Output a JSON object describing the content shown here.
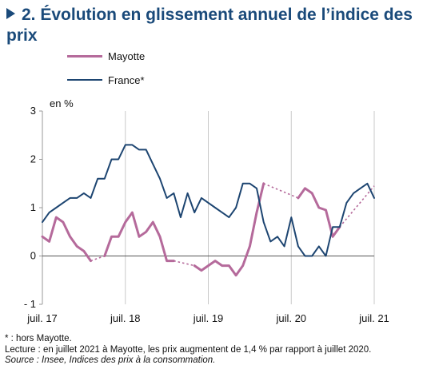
{
  "title": "2. Évolution en glissement annuel de l’indice des prix",
  "unit_label": "en %",
  "notes": {
    "asterisk": "* : hors Mayotte.",
    "reading": "Lecture : en juillet 2021 à Mayotte, les prix augmentent de 1,4 % par rapport à juillet 2020.",
    "source": "Source : Insee, Indices des prix à la consommation."
  },
  "colors": {
    "mayotte": "#b56a9b",
    "france": "#1d4571",
    "title": "#1a4a7a"
  },
  "chart_data": {
    "type": "line",
    "title": "2. Évolution en glissement annuel de l’indice des prix",
    "ylabel": "en %",
    "xlabel": "",
    "ylim": [
      -1,
      3
    ],
    "yticks": [
      "- 1",
      "0",
      "1",
      "2",
      "3"
    ],
    "ytick_values": [
      -1,
      0,
      1,
      2,
      3
    ],
    "xlim": [
      "2017-07",
      "2021-07"
    ],
    "xticks": [
      "juil. 17",
      "juil. 18",
      "juil. 19",
      "juil. 20",
      "juil. 21"
    ],
    "xtick_months": [
      "2017-07",
      "2018-07",
      "2019-07",
      "2020-07",
      "2021-07"
    ],
    "grid": {
      "vertical": true,
      "horizontal": false
    },
    "legend_position": "top-left",
    "series": [
      {
        "name": "Mayotte",
        "color": "#b56a9b",
        "style": "solid-with-dotted-gaps",
        "points": [
          [
            "2017-07",
            0.4
          ],
          [
            "2017-08",
            0.3
          ],
          [
            "2017-09",
            0.8
          ],
          [
            "2017-10",
            0.7
          ],
          [
            "2017-11",
            0.4
          ],
          [
            "2017-12",
            0.2
          ],
          [
            "2018-01",
            0.1
          ],
          [
            "2018-02",
            -0.1
          ],
          [
            "2018-03",
            null
          ],
          [
            "2018-04",
            0.0
          ],
          [
            "2018-05",
            0.4
          ],
          [
            "2018-06",
            0.4
          ],
          [
            "2018-07",
            0.7
          ],
          [
            "2018-08",
            0.9
          ],
          [
            "2018-09",
            0.4
          ],
          [
            "2018-10",
            0.5
          ],
          [
            "2018-11",
            0.7
          ],
          [
            "2018-12",
            0.4
          ],
          [
            "2019-01",
            -0.1
          ],
          [
            "2019-02",
            -0.1
          ],
          [
            "2019-03",
            null
          ],
          [
            "2019-04",
            null
          ],
          [
            "2019-05",
            -0.2
          ],
          [
            "2019-06",
            -0.3
          ],
          [
            "2019-07",
            -0.2
          ],
          [
            "2019-08",
            -0.1
          ],
          [
            "2019-09",
            -0.2
          ],
          [
            "2019-10",
            -0.2
          ],
          [
            "2019-11",
            -0.4
          ],
          [
            "2019-12",
            -0.2
          ],
          [
            "2020-01",
            0.2
          ],
          [
            "2020-02",
            0.9
          ],
          [
            "2020-03",
            1.5
          ],
          [
            "2020-04",
            null
          ],
          [
            "2020-05",
            null
          ],
          [
            "2020-06",
            null
          ],
          [
            "2020-07",
            null
          ],
          [
            "2020-08",
            1.2
          ],
          [
            "2020-09",
            1.4
          ],
          [
            "2020-10",
            1.3
          ],
          [
            "2020-11",
            1.0
          ],
          [
            "2020-12",
            0.95
          ],
          [
            "2021-01",
            0.4
          ],
          [
            "2021-02",
            0.6
          ],
          [
            "2021-03",
            null
          ],
          [
            "2021-04",
            null
          ],
          [
            "2021-05",
            null
          ],
          [
            "2021-06",
            null
          ],
          [
            "2021-07",
            1.45
          ]
        ]
      },
      {
        "name": "France*",
        "color": "#1d4571",
        "style": "solid",
        "points": [
          [
            "2017-07",
            0.7
          ],
          [
            "2017-08",
            0.9
          ],
          [
            "2017-09",
            1.0
          ],
          [
            "2017-10",
            1.1
          ],
          [
            "2017-11",
            1.2
          ],
          [
            "2017-12",
            1.2
          ],
          [
            "2018-01",
            1.3
          ],
          [
            "2018-02",
            1.2
          ],
          [
            "2018-03",
            1.6
          ],
          [
            "2018-04",
            1.6
          ],
          [
            "2018-05",
            2.0
          ],
          [
            "2018-06",
            2.0
          ],
          [
            "2018-07",
            2.3
          ],
          [
            "2018-08",
            2.3
          ],
          [
            "2018-09",
            2.2
          ],
          [
            "2018-10",
            2.2
          ],
          [
            "2018-11",
            1.9
          ],
          [
            "2018-12",
            1.6
          ],
          [
            "2019-01",
            1.2
          ],
          [
            "2019-02",
            1.3
          ],
          [
            "2019-03",
            0.8
          ],
          [
            "2019-04",
            1.3
          ],
          [
            "2019-05",
            0.9
          ],
          [
            "2019-06",
            1.2
          ],
          [
            "2019-07",
            1.1
          ],
          [
            "2019-08",
            1.0
          ],
          [
            "2019-09",
            0.9
          ],
          [
            "2019-10",
            0.8
          ],
          [
            "2019-11",
            1.0
          ],
          [
            "2019-12",
            1.5
          ],
          [
            "2020-01",
            1.5
          ],
          [
            "2020-02",
            1.4
          ],
          [
            "2020-03",
            0.7
          ],
          [
            "2020-04",
            0.3
          ],
          [
            "2020-05",
            0.4
          ],
          [
            "2020-06",
            0.2
          ],
          [
            "2020-07",
            0.8
          ],
          [
            "2020-08",
            0.2
          ],
          [
            "2020-09",
            0.0
          ],
          [
            "2020-10",
            0.0
          ],
          [
            "2020-11",
            0.2
          ],
          [
            "2020-12",
            0.0
          ],
          [
            "2021-01",
            0.6
          ],
          [
            "2021-02",
            0.6
          ],
          [
            "2021-03",
            1.1
          ],
          [
            "2021-04",
            1.3
          ],
          [
            "2021-05",
            1.4
          ],
          [
            "2021-06",
            1.5
          ],
          [
            "2021-07",
            1.2
          ]
        ]
      }
    ]
  }
}
